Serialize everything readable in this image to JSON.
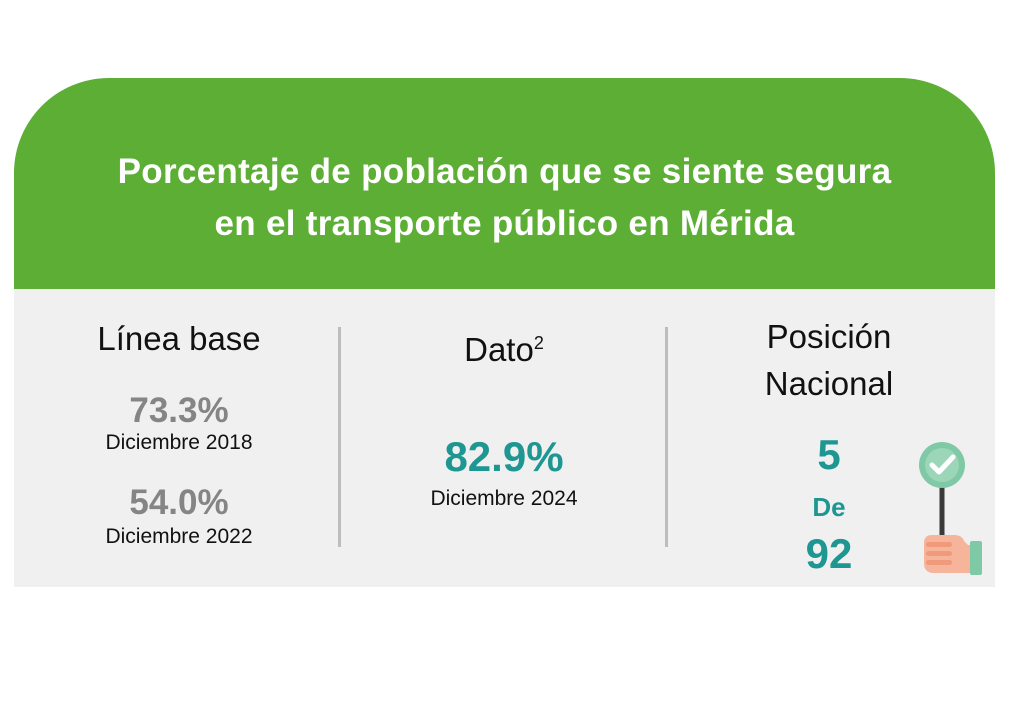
{
  "title_line1": "Porcentaje de población que se siente segura",
  "title_line2": "en el transporte público en Mérida",
  "baseline": {
    "heading": "Línea base",
    "entries": [
      {
        "value": "73.3%",
        "date": "Diciembre 2018"
      },
      {
        "value": "54.0%",
        "date": "Diciembre 2022"
      }
    ]
  },
  "dato": {
    "heading": "Dato",
    "superscript": "2",
    "value": "82.9%",
    "date": "Diciembre 2024"
  },
  "position": {
    "heading_line1": "Posición",
    "heading_line2": "Nacional",
    "rank": "5",
    "of_label": "De",
    "total": "92"
  },
  "icons": {
    "rank_icon": "hand-holding-check-sign-icon"
  },
  "colors": {
    "header_green": "#5dae35",
    "teal": "#1e9691",
    "value_gray": "#858585",
    "panel_bg": "#f0f0f0"
  }
}
